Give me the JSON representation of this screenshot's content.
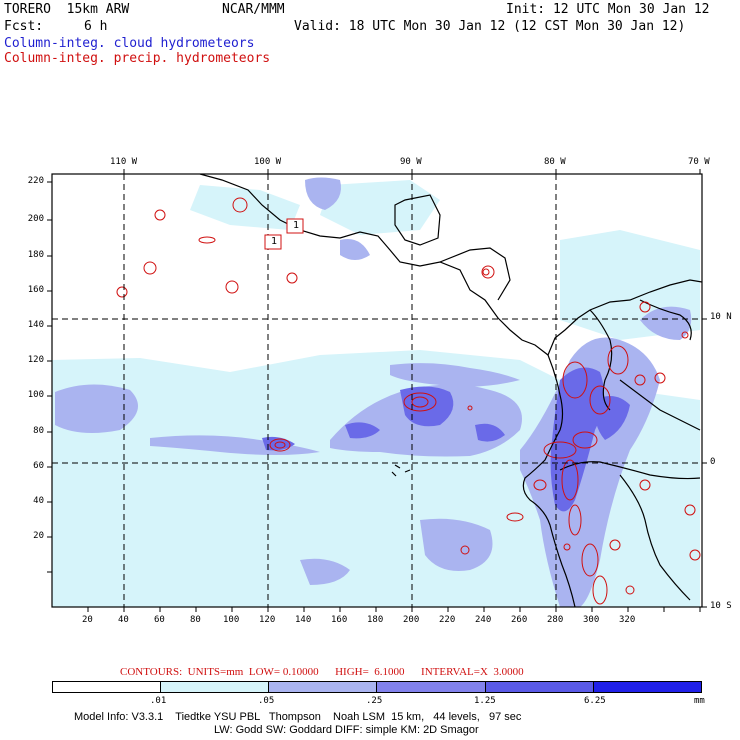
{
  "header": {
    "model": "TORERO  15km ARW",
    "org": "NCAR/MMM",
    "init": "Init: 12 UTC Mon 30 Jan 12",
    "fcst_label": "Fcst:",
    "fcst_value": "6 h",
    "valid": "Valid: 18 UTC Mon 30 Jan 12 (12 CST Mon 30 Jan 12)",
    "field_cloud": "Column-integ. cloud hydrometeors",
    "field_precip": "Column-integ. precip. hydrometeors"
  },
  "map": {
    "longitude_labels": [
      "110 W",
      "100 W",
      "90 W",
      "80 W",
      "70 W"
    ],
    "latitude_labels": [
      "10 N",
      "0",
      "10 S"
    ],
    "x_ticks": [
      "20",
      "40",
      "60",
      "80",
      "100",
      "120",
      "140",
      "160",
      "180",
      "200",
      "220",
      "240",
      "260",
      "280",
      "300",
      "320"
    ],
    "y_ticks": [
      "220",
      "200",
      "180",
      "160",
      "140",
      "120",
      "100",
      "80",
      "60",
      "40",
      "20"
    ],
    "station_markers": [
      "1",
      "1"
    ],
    "colors": {
      "cloud_fill_light": "#d6f4fa",
      "cloud_fill_mid": "#aab4f0",
      "cloud_fill_dark": "#6a6ae8",
      "precip_contour": "#d01010",
      "coastline": "#000000"
    }
  },
  "contour_info": {
    "text": "CONTOURS:  UNITS=mm  LOW= 0.10000      HIGH=  6.1000      INTERVAL=X  3.0000"
  },
  "legend": {
    "labels": [
      ".01",
      ".05",
      ".25",
      "1.25",
      "6.25"
    ],
    "unit": "mm",
    "colors": [
      "#ffffff",
      "#d6f4fa",
      "#aab4f0",
      "#8282ec",
      "#5a5ae6",
      "#2020e8"
    ]
  },
  "footer": {
    "line1": "Model Info: V3.3.1    Tiedtke YSU PBL   Thompson    Noah LSM  15 km,   44 levels,   97 sec",
    "line2": "LW: Godd SW: Goddard DIFF: simple KM: 2D Smagor"
  }
}
